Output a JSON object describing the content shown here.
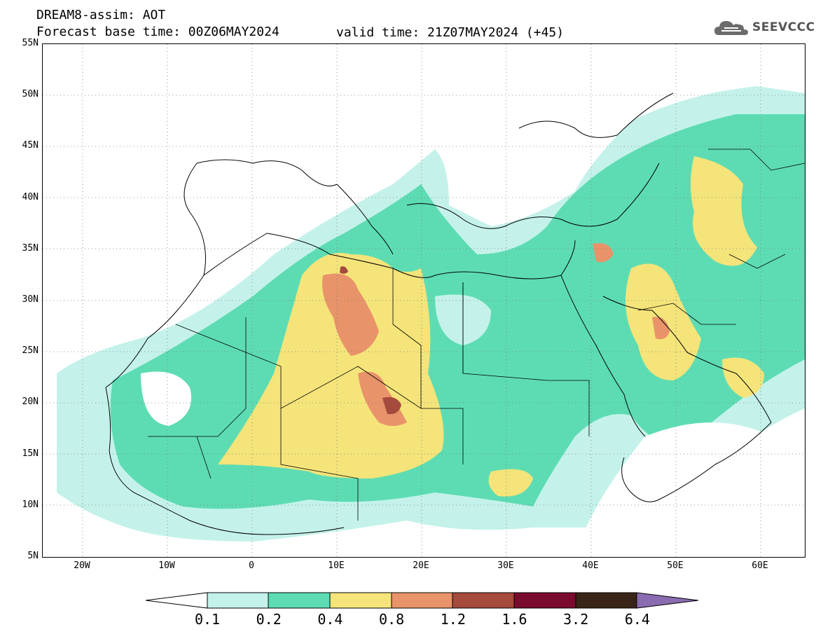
{
  "header": {
    "title": "DREAM8-assim: AOT",
    "base_time": "Forecast base time: 00Z06MAY2024",
    "valid_time": "valid time: 21Z07MAY2024 (+45)"
  },
  "logo": {
    "text": "SEEVCCC",
    "icon": "cloud-icon"
  },
  "map": {
    "lat_labels": [
      "55N",
      "50N",
      "45N",
      "40N",
      "35N",
      "30N",
      "25N",
      "20N",
      "15N",
      "10N",
      "5N"
    ],
    "lon_labels": [
      "20W",
      "10W",
      "0",
      "10E",
      "20E",
      "30E",
      "40E",
      "50E",
      "60E"
    ]
  },
  "colorbar": {
    "labels": [
      "0.1",
      "0.2",
      "0.4",
      "0.8",
      "1.2",
      "1.6",
      "3.2",
      "6.4"
    ],
    "colors": {
      "below": "#ffffff",
      "c1": "#c4f2ea",
      "c2": "#5ddcb3",
      "c3": "#f5e47a",
      "c4": "#e8936a",
      "c5": "#a54a3c",
      "c6": "#7a0a2e",
      "c7": "#3a2418",
      "above": "#8c6cb0"
    }
  }
}
